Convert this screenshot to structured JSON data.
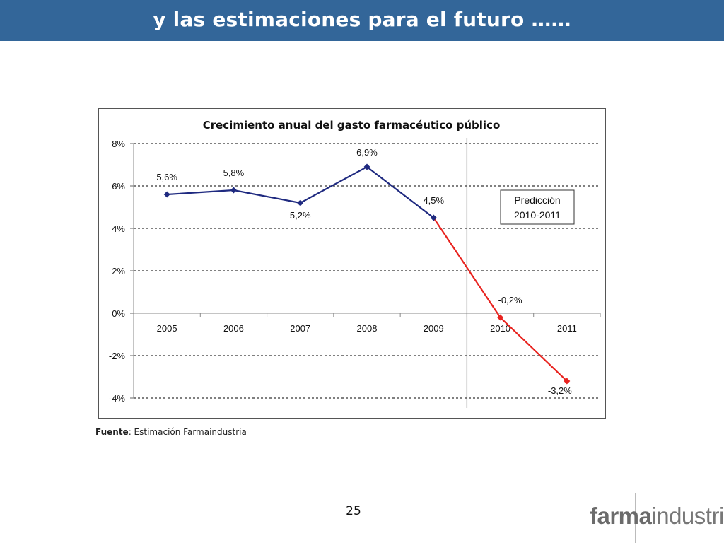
{
  "slide": {
    "title": "y las estimaciones para el futuro ……",
    "page_number": "25",
    "source_label": "Fuente",
    "source_text": ": Estimación Farmaindustria",
    "logo_bold": "farma",
    "logo_light": "industria"
  },
  "colors": {
    "header": "#336699",
    "series_actual": "#1f2a80",
    "series_prediction": "#e8231f"
  },
  "chart_data": {
    "type": "line",
    "title": "Crecimiento anual del gasto farmacéutico público",
    "x": [
      "2005",
      "2006",
      "2007",
      "2008",
      "2009",
      "2010",
      "2011"
    ],
    "ylim": [
      -4,
      8
    ],
    "yticks": [
      8,
      6,
      4,
      2,
      0,
      -2,
      -4
    ],
    "ytick_labels": [
      "8%",
      "6%",
      "4%",
      "2%",
      "0%",
      "-2%",
      "-4%"
    ],
    "grid": true,
    "series": [
      {
        "values": [
          5.6,
          5.8,
          5.2,
          6.9,
          4.5,
          null,
          null
        ]
      },
      {
        "values": [
          null,
          null,
          null,
          null,
          4.5,
          -0.2,
          -3.2
        ]
      }
    ],
    "data_labels": [
      "5,6%",
      "5,8%",
      "5,2%",
      "6,9%",
      "4,5%",
      "-0,2%",
      "-3,2%"
    ],
    "annotation": {
      "text_line1": "Predicción",
      "text_line2": "2010-2011"
    }
  }
}
